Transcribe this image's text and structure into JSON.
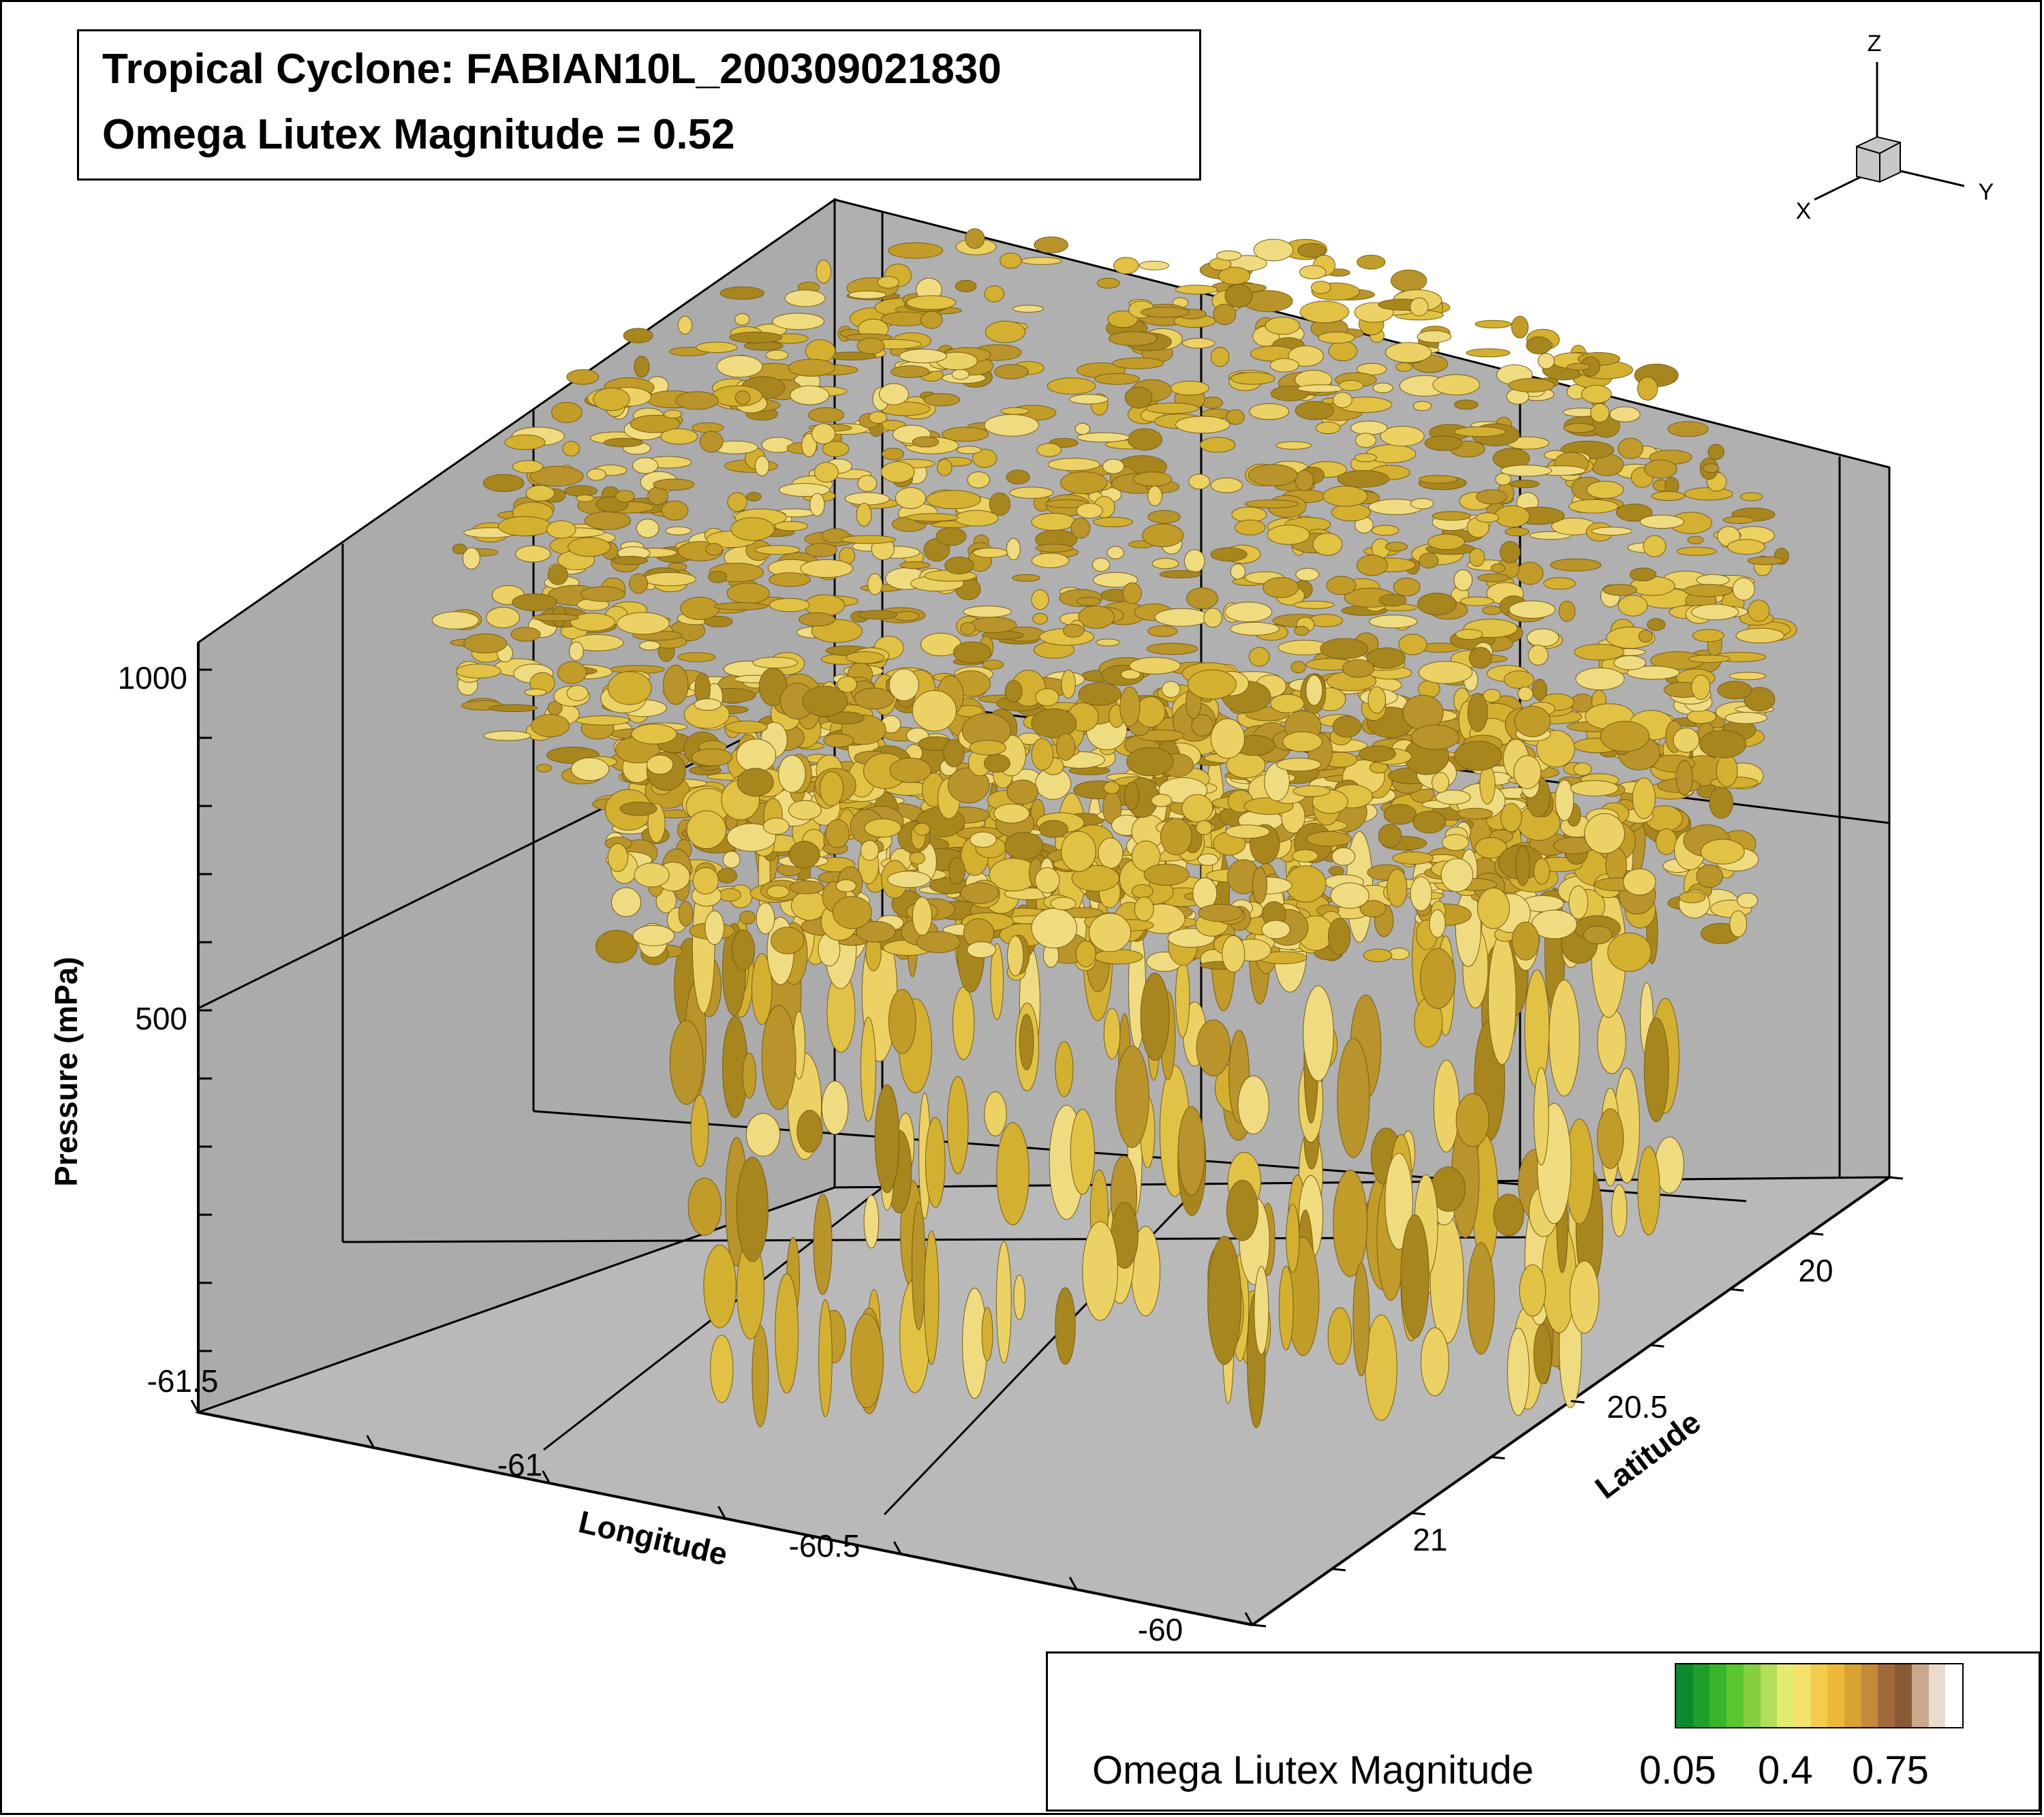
{
  "title_lines": [
    "Tropical Cyclone: FABIAN10L_200309021830",
    "Omega Liutex Magnitude = 0.52"
  ],
  "orientation_axes": {
    "z": "Z",
    "x": "X",
    "y": "Y"
  },
  "legend": {
    "label": "Omega Liutex Magnitude",
    "ticks": [
      "0.05",
      "0.4",
      "0.75"
    ],
    "colors": [
      "#0a8a2a",
      "#1f9e2a",
      "#38b52a",
      "#5cc62e",
      "#86d040",
      "#b3de5a",
      "#e2ec6e",
      "#f4e06a",
      "#f3cc4c",
      "#eeb93a",
      "#d9a235",
      "#c4893a",
      "#a06a3a",
      "#8a5a35",
      "#c9a88c",
      "#e8dccf",
      "#ffffff"
    ]
  },
  "colors": {
    "isosurface": "#d4b030",
    "box_wall": "#a9a9a9",
    "floor": "#b8b8b8"
  },
  "chart_data": {
    "type": "3d-isosurface",
    "title": "Tropical Cyclone: FABIAN10L_200309021830",
    "subtitle": "Omega Liutex Magnitude = 0.52",
    "iso_value": 0.52,
    "x_axis": {
      "label": "Longitude",
      "ticks": [
        "-61.5",
        "-61",
        "-60.5",
        "-60"
      ],
      "range": [
        -61.5,
        -60
      ]
    },
    "y_axis": {
      "label": "Latitude",
      "ticks": [
        "20",
        "20.5",
        "21"
      ],
      "range": [
        19.8,
        21.2
      ]
    },
    "z_axis": {
      "label": "Pressure (mPa)",
      "ticks": [
        "500",
        "1000"
      ],
      "range": [
        0,
        1000
      ]
    },
    "colorbar": {
      "label": "Omega Liutex Magnitude",
      "ticks": [
        0.05,
        0.4,
        0.75
      ]
    }
  }
}
